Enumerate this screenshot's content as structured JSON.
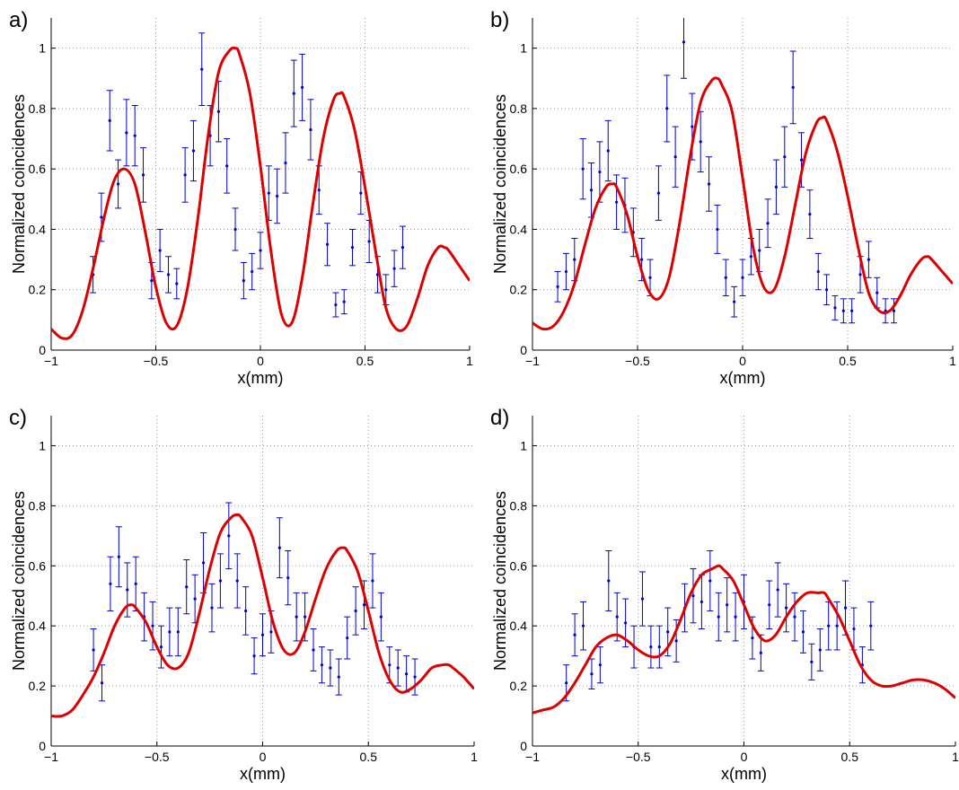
{
  "figure": {
    "background": "#ffffff",
    "grid_color": "#9a9a9a",
    "axis_color": "#000000"
  },
  "chart_data": [
    {
      "type": "scatter",
      "panel_label": "a)",
      "xlabel": "x(mm)",
      "ylabel": "Normalized coincidences",
      "xlim": [
        -1,
        1
      ],
      "ylim": [
        0,
        1.1
      ],
      "xticks": [
        -1,
        -0.5,
        0,
        0.5,
        1
      ],
      "xtick_labels": [
        "−1",
        "−0.5",
        "0",
        "0.5",
        "1"
      ],
      "yticks": [
        0,
        0.2,
        0.4,
        0.6,
        0.8,
        1
      ],
      "ytick_labels": [
        "0",
        "0.2",
        "0.4",
        "0.6",
        "0.8",
        "1"
      ],
      "grid": true,
      "series": [
        {
          "kind": "errorbar",
          "color": "#0000cc",
          "x": [
            -0.8,
            -0.76,
            -0.72,
            -0.68,
            -0.64,
            -0.6,
            -0.56,
            -0.52,
            -0.48,
            -0.44,
            -0.4,
            -0.36,
            -0.32,
            -0.28,
            -0.24,
            -0.2,
            -0.16,
            -0.12,
            -0.08,
            -0.04,
            0,
            0.04,
            0.08,
            0.12,
            0.16,
            0.2,
            0.24,
            0.28,
            0.32,
            0.36,
            0.4,
            0.44,
            0.48,
            0.52,
            0.56,
            0.6,
            0.64,
            0.68
          ],
          "y": [
            0.25,
            0.44,
            0.76,
            0.55,
            0.72,
            0.71,
            0.58,
            0.23,
            0.33,
            0.25,
            0.22,
            0.58,
            0.66,
            0.93,
            0.71,
            0.79,
            0.61,
            0.4,
            0.23,
            0.26,
            0.33,
            0.52,
            0.51,
            0.62,
            0.85,
            0.87,
            0.73,
            0.53,
            0.35,
            0.15,
            0.16,
            0.34,
            0.52,
            0.36,
            0.25,
            0.2,
            0.27,
            0.34
          ],
          "err": [
            0.06,
            0.08,
            0.1,
            0.08,
            0.11,
            0.1,
            0.09,
            0.06,
            0.07,
            0.06,
            0.05,
            0.09,
            0.1,
            0.12,
            0.1,
            0.1,
            0.09,
            0.07,
            0.06,
            0.06,
            0.06,
            0.09,
            0.09,
            0.1,
            0.11,
            0.11,
            0.1,
            0.08,
            0.07,
            0.04,
            0.04,
            0.06,
            0.07,
            0.07,
            0.06,
            0.05,
            0.06,
            0.07
          ]
        },
        {
          "kind": "line",
          "color": "#dd0000",
          "x": [
            -1,
            -0.95,
            -0.9,
            -0.85,
            -0.8,
            -0.75,
            -0.7,
            -0.65,
            -0.6,
            -0.55,
            -0.5,
            -0.45,
            -0.4,
            -0.35,
            -0.3,
            -0.25,
            -0.2,
            -0.15,
            -0.12,
            -0.1,
            -0.05,
            0,
            0.05,
            0.1,
            0.15,
            0.2,
            0.25,
            0.3,
            0.35,
            0.38,
            0.4,
            0.45,
            0.5,
            0.55,
            0.6,
            0.65,
            0.7,
            0.75,
            0.8,
            0.85,
            0.88,
            0.9,
            0.95,
            1
          ],
          "y": [
            0.07,
            0.04,
            0.05,
            0.13,
            0.27,
            0.43,
            0.56,
            0.6,
            0.55,
            0.39,
            0.21,
            0.09,
            0.08,
            0.2,
            0.43,
            0.71,
            0.92,
            0.99,
            1.0,
            0.98,
            0.85,
            0.61,
            0.33,
            0.12,
            0.09,
            0.24,
            0.48,
            0.7,
            0.83,
            0.85,
            0.84,
            0.73,
            0.54,
            0.33,
            0.14,
            0.07,
            0.08,
            0.17,
            0.28,
            0.34,
            0.34,
            0.33,
            0.28,
            0.23
          ]
        }
      ]
    },
    {
      "type": "scatter",
      "panel_label": "b)",
      "xlabel": "x(mm)",
      "ylabel": "Normalized coincidences",
      "xlim": [
        -1,
        1
      ],
      "ylim": [
        0,
        1.1
      ],
      "xticks": [
        -1,
        -0.5,
        0,
        0.5,
        1
      ],
      "xtick_labels": [
        "−1",
        "−0.5",
        "0",
        "0.5",
        "1"
      ],
      "yticks": [
        0,
        0.2,
        0.4,
        0.6,
        0.8,
        1
      ],
      "ytick_labels": [
        "0",
        "0.2",
        "0.4",
        "0.6",
        "0.8",
        "1"
      ],
      "grid": true,
      "series": [
        {
          "kind": "errorbar",
          "color": "#0000cc",
          "x": [
            -0.88,
            -0.84,
            -0.8,
            -0.76,
            -0.72,
            -0.68,
            -0.64,
            -0.6,
            -0.56,
            -0.52,
            -0.48,
            -0.44,
            -0.4,
            -0.36,
            -0.32,
            -0.28,
            -0.24,
            -0.2,
            -0.16,
            -0.12,
            -0.08,
            -0.04,
            0,
            0.04,
            0.08,
            0.12,
            0.16,
            0.2,
            0.24,
            0.28,
            0.32,
            0.36,
            0.4,
            0.44,
            0.48,
            0.52,
            0.56,
            0.6,
            0.64,
            0.68,
            0.72
          ],
          "y": [
            0.21,
            0.26,
            0.3,
            0.6,
            0.53,
            0.59,
            0.66,
            0.49,
            0.48,
            0.39,
            0.3,
            0.24,
            0.52,
            0.8,
            0.64,
            1.02,
            0.74,
            0.69,
            0.55,
            0.4,
            0.24,
            0.16,
            0.24,
            0.31,
            0.33,
            0.42,
            0.54,
            0.64,
            0.87,
            0.63,
            0.45,
            0.26,
            0.2,
            0.14,
            0.13,
            0.13,
            0.25,
            0.3,
            0.19,
            0.13,
            0.13
          ],
          "err": [
            0.05,
            0.06,
            0.07,
            0.1,
            0.09,
            0.1,
            0.1,
            0.09,
            0.09,
            0.08,
            0.07,
            0.06,
            0.09,
            0.11,
            0.1,
            0.12,
            0.11,
            0.1,
            0.09,
            0.08,
            0.06,
            0.05,
            0.06,
            0.06,
            0.07,
            0.08,
            0.09,
            0.1,
            0.12,
            0.09,
            0.08,
            0.06,
            0.05,
            0.04,
            0.04,
            0.04,
            0.06,
            0.06,
            0.05,
            0.04,
            0.04
          ]
        },
        {
          "kind": "line",
          "color": "#dd0000",
          "x": [
            -1,
            -0.95,
            -0.9,
            -0.85,
            -0.8,
            -0.75,
            -0.7,
            -0.65,
            -0.62,
            -0.6,
            -0.55,
            -0.5,
            -0.45,
            -0.4,
            -0.35,
            -0.3,
            -0.25,
            -0.2,
            -0.15,
            -0.12,
            -0.1,
            -0.05,
            0,
            0.05,
            0.1,
            0.15,
            0.2,
            0.25,
            0.3,
            0.35,
            0.38,
            0.4,
            0.45,
            0.5,
            0.55,
            0.6,
            0.65,
            0.7,
            0.75,
            0.8,
            0.85,
            0.88,
            0.9,
            0.95,
            1
          ],
          "y": [
            0.09,
            0.07,
            0.08,
            0.13,
            0.22,
            0.35,
            0.47,
            0.54,
            0.55,
            0.54,
            0.45,
            0.31,
            0.2,
            0.17,
            0.24,
            0.42,
            0.64,
            0.82,
            0.89,
            0.9,
            0.88,
            0.79,
            0.57,
            0.34,
            0.21,
            0.2,
            0.31,
            0.48,
            0.65,
            0.75,
            0.77,
            0.76,
            0.66,
            0.51,
            0.34,
            0.19,
            0.13,
            0.13,
            0.18,
            0.25,
            0.3,
            0.31,
            0.3,
            0.26,
            0.22
          ]
        }
      ]
    },
    {
      "type": "scatter",
      "panel_label": "c)",
      "xlabel": "x(mm)",
      "ylabel": "Normalized coincidences",
      "xlim": [
        -1,
        1
      ],
      "ylim": [
        0,
        1.1
      ],
      "xticks": [
        -1,
        -0.5,
        0,
        0.5,
        1
      ],
      "xtick_labels": [
        "−1",
        "−0.5",
        "0",
        "0.5",
        "1"
      ],
      "yticks": [
        0,
        0.2,
        0.4,
        0.6,
        0.8,
        1
      ],
      "ytick_labels": [
        "0",
        "0.2",
        "0.4",
        "0.6",
        "0.8",
        "1"
      ],
      "grid": true,
      "series": [
        {
          "kind": "errorbar",
          "color": "#0000cc",
          "x": [
            -0.8,
            -0.76,
            -0.72,
            -0.68,
            -0.64,
            -0.6,
            -0.56,
            -0.52,
            -0.48,
            -0.44,
            -0.4,
            -0.36,
            -0.32,
            -0.28,
            -0.24,
            -0.2,
            -0.16,
            -0.12,
            -0.08,
            -0.04,
            0,
            0.04,
            0.08,
            0.12,
            0.16,
            0.2,
            0.24,
            0.28,
            0.32,
            0.36,
            0.4,
            0.44,
            0.48,
            0.52,
            0.56,
            0.6,
            0.64,
            0.68,
            0.72
          ],
          "y": [
            0.32,
            0.21,
            0.54,
            0.63,
            0.52,
            0.54,
            0.43,
            0.4,
            0.33,
            0.38,
            0.38,
            0.53,
            0.49,
            0.61,
            0.46,
            0.55,
            0.7,
            0.55,
            0.45,
            0.3,
            0.37,
            0.38,
            0.66,
            0.56,
            0.43,
            0.43,
            0.32,
            0.27,
            0.26,
            0.23,
            0.36,
            0.45,
            0.47,
            0.55,
            0.43,
            0.27,
            0.26,
            0.24,
            0.23
          ],
          "err": [
            0.07,
            0.06,
            0.09,
            0.1,
            0.09,
            0.09,
            0.08,
            0.08,
            0.07,
            0.08,
            0.08,
            0.09,
            0.08,
            0.1,
            0.08,
            0.09,
            0.11,
            0.09,
            0.08,
            0.06,
            0.07,
            0.07,
            0.1,
            0.09,
            0.08,
            0.08,
            0.07,
            0.06,
            0.06,
            0.06,
            0.07,
            0.08,
            0.08,
            0.09,
            0.08,
            0.06,
            0.06,
            0.06,
            0.06
          ]
        },
        {
          "kind": "line",
          "color": "#dd0000",
          "x": [
            -1,
            -0.95,
            -0.9,
            -0.85,
            -0.8,
            -0.75,
            -0.7,
            -0.65,
            -0.62,
            -0.6,
            -0.55,
            -0.5,
            -0.45,
            -0.4,
            -0.35,
            -0.3,
            -0.25,
            -0.2,
            -0.15,
            -0.12,
            -0.1,
            -0.05,
            0,
            0.05,
            0.1,
            0.15,
            0.2,
            0.25,
            0.3,
            0.35,
            0.38,
            0.4,
            0.45,
            0.5,
            0.55,
            0.6,
            0.65,
            0.7,
            0.75,
            0.8,
            0.85,
            0.88,
            0.9,
            0.95,
            1
          ],
          "y": [
            0.1,
            0.1,
            0.12,
            0.17,
            0.23,
            0.31,
            0.4,
            0.46,
            0.47,
            0.46,
            0.41,
            0.33,
            0.27,
            0.26,
            0.31,
            0.44,
            0.59,
            0.71,
            0.76,
            0.77,
            0.76,
            0.7,
            0.56,
            0.41,
            0.32,
            0.31,
            0.38,
            0.49,
            0.59,
            0.65,
            0.66,
            0.65,
            0.58,
            0.45,
            0.31,
            0.22,
            0.18,
            0.19,
            0.22,
            0.26,
            0.27,
            0.27,
            0.26,
            0.23,
            0.19
          ]
        }
      ]
    },
    {
      "type": "scatter",
      "panel_label": "d)",
      "xlabel": "x(mm)",
      "ylabel": "Normalized coincidences",
      "xlim": [
        -1,
        1
      ],
      "ylim": [
        0,
        1.1
      ],
      "xticks": [
        -1,
        -0.5,
        0,
        0.5,
        1
      ],
      "xtick_labels": [
        "−1",
        "−0.5",
        "0",
        "0.5",
        "1"
      ],
      "yticks": [
        0,
        0.2,
        0.4,
        0.6,
        0.8,
        1
      ],
      "ytick_labels": [
        "0",
        "0.2",
        "0.4",
        "0.6",
        "0.8",
        "1"
      ],
      "grid": true,
      "series": [
        {
          "kind": "errorbar",
          "color": "#0000cc",
          "x": [
            -0.84,
            -0.8,
            -0.76,
            -0.72,
            -0.68,
            -0.64,
            -0.6,
            -0.56,
            -0.52,
            -0.48,
            -0.44,
            -0.4,
            -0.36,
            -0.32,
            -0.28,
            -0.24,
            -0.2,
            -0.16,
            -0.12,
            -0.08,
            -0.04,
            0,
            0.04,
            0.08,
            0.12,
            0.16,
            0.2,
            0.24,
            0.28,
            0.32,
            0.36,
            0.4,
            0.44,
            0.48,
            0.52,
            0.56,
            0.6
          ],
          "y": [
            0.21,
            0.37,
            0.4,
            0.24,
            0.27,
            0.55,
            0.43,
            0.41,
            0.33,
            0.49,
            0.33,
            0.33,
            0.38,
            0.35,
            0.46,
            0.5,
            0.48,
            0.55,
            0.43,
            0.47,
            0.43,
            0.48,
            0.36,
            0.31,
            0.47,
            0.52,
            0.46,
            0.43,
            0.38,
            0.28,
            0.32,
            0.4,
            0.4,
            0.46,
            0.39,
            0.27,
            0.4
          ],
          "err": [
            0.06,
            0.07,
            0.08,
            0.05,
            0.06,
            0.1,
            0.08,
            0.08,
            0.07,
            0.09,
            0.07,
            0.07,
            0.08,
            0.07,
            0.08,
            0.09,
            0.09,
            0.1,
            0.08,
            0.09,
            0.08,
            0.09,
            0.07,
            0.06,
            0.08,
            0.09,
            0.08,
            0.08,
            0.07,
            0.06,
            0.07,
            0.08,
            0.08,
            0.09,
            0.07,
            0.06,
            0.08
          ]
        },
        {
          "kind": "line",
          "color": "#dd0000",
          "x": [
            -1,
            -0.95,
            -0.9,
            -0.85,
            -0.8,
            -0.75,
            -0.7,
            -0.65,
            -0.6,
            -0.55,
            -0.5,
            -0.45,
            -0.4,
            -0.35,
            -0.3,
            -0.25,
            -0.2,
            -0.15,
            -0.12,
            -0.1,
            -0.05,
            0,
            0.05,
            0.1,
            0.15,
            0.2,
            0.25,
            0.3,
            0.35,
            0.38,
            0.4,
            0.45,
            0.5,
            0.55,
            0.6,
            0.65,
            0.7,
            0.75,
            0.8,
            0.85,
            0.9,
            0.95,
            1
          ],
          "y": [
            0.11,
            0.12,
            0.13,
            0.16,
            0.21,
            0.27,
            0.33,
            0.36,
            0.37,
            0.35,
            0.32,
            0.3,
            0.3,
            0.34,
            0.42,
            0.51,
            0.57,
            0.59,
            0.6,
            0.59,
            0.55,
            0.47,
            0.39,
            0.35,
            0.37,
            0.43,
            0.48,
            0.51,
            0.51,
            0.51,
            0.49,
            0.43,
            0.35,
            0.27,
            0.22,
            0.2,
            0.2,
            0.21,
            0.22,
            0.22,
            0.21,
            0.19,
            0.16
          ]
        }
      ]
    }
  ]
}
